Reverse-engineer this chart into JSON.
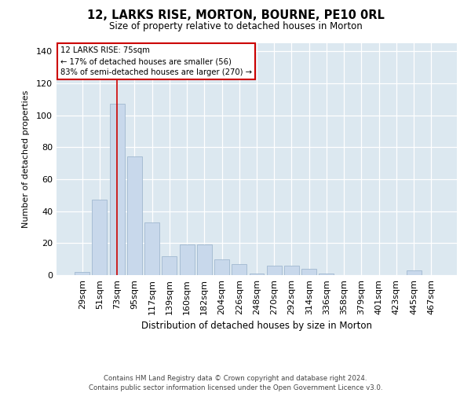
{
  "title": "12, LARKS RISE, MORTON, BOURNE, PE10 0RL",
  "subtitle": "Size of property relative to detached houses in Morton",
  "xlabel": "Distribution of detached houses by size in Morton",
  "ylabel": "Number of detached properties",
  "categories": [
    "29sqm",
    "51sqm",
    "73sqm",
    "95sqm",
    "117sqm",
    "139sqm",
    "160sqm",
    "182sqm",
    "204sqm",
    "226sqm",
    "248sqm",
    "270sqm",
    "292sqm",
    "314sqm",
    "336sqm",
    "358sqm",
    "379sqm",
    "401sqm",
    "423sqm",
    "445sqm",
    "467sqm"
  ],
  "values": [
    2,
    47,
    107,
    74,
    33,
    12,
    19,
    19,
    10,
    7,
    1,
    6,
    6,
    4,
    1,
    0,
    0,
    0,
    0,
    3,
    0
  ],
  "bar_color": "#c8d8eb",
  "bar_edge_color": "#a0b8d0",
  "plot_bg_color": "#dce8f0",
  "fig_bg_color": "#ffffff",
  "grid_color": "#ffffff",
  "vline_x": 2,
  "vline_color": "#cc0000",
  "annotation_lines": [
    "12 LARKS RISE: 75sqm",
    "← 17% of detached houses are smaller (56)",
    "83% of semi-detached houses are larger (270) →"
  ],
  "annotation_box_color": "#ffffff",
  "annotation_box_edge": "#cc0000",
  "ylim": [
    0,
    145
  ],
  "yticks": [
    0,
    20,
    40,
    60,
    80,
    100,
    120,
    140
  ],
  "footer": "Contains HM Land Registry data © Crown copyright and database right 2024.\nContains public sector information licensed under the Open Government Licence v3.0."
}
